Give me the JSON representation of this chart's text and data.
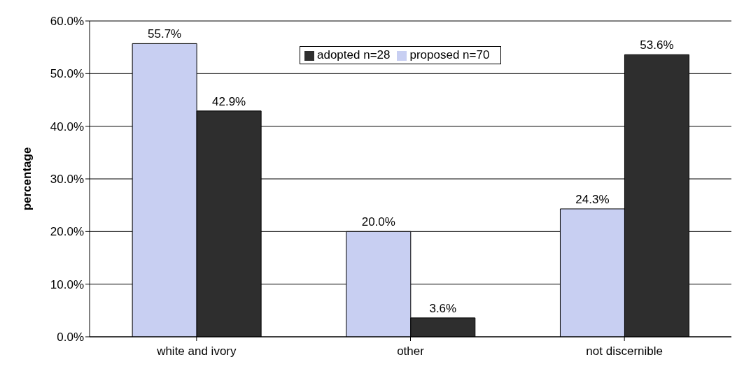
{
  "chart_data": {
    "type": "bar",
    "ylabel": "percentage",
    "categories": [
      "white and ivory",
      "other",
      "not discernible"
    ],
    "series": [
      {
        "name": "proposed n=70",
        "color": "#c8cff2",
        "values": [
          55.7,
          20.0,
          24.3
        ],
        "value_labels": [
          "55.7%",
          "20.0%",
          "24.3%"
        ]
      },
      {
        "name": "adopted n=28",
        "color": "#2e2e2e",
        "values": [
          42.9,
          3.6,
          53.6
        ],
        "value_labels": [
          "42.9%",
          "3.6%",
          "53.6%"
        ]
      }
    ],
    "ylim": [
      0,
      60
    ],
    "yticks": [
      {
        "value": 0,
        "label": "0.0%"
      },
      {
        "value": 10,
        "label": "10.0%"
      },
      {
        "value": 20,
        "label": "20.0%"
      },
      {
        "value": 30,
        "label": "30.0%"
      },
      {
        "value": 40,
        "label": "40.0%"
      },
      {
        "value": 50,
        "label": "50.0%"
      },
      {
        "value": 60,
        "label": "60.0%"
      }
    ],
    "grid": "y",
    "legend": "top"
  }
}
